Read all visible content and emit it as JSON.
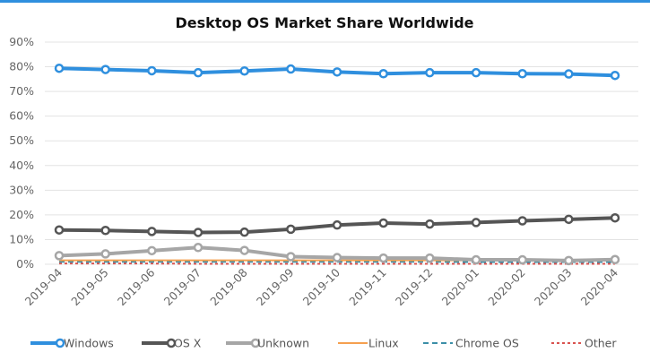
{
  "chart_data": {
    "type": "line",
    "title": "Desktop OS Market Share Worldwide",
    "categories": [
      "2019-04",
      "2019-05",
      "2019-06",
      "2019-07",
      "2019-08",
      "2019-09",
      "2019-10",
      "2019-11",
      "2019-12",
      "2020-01",
      "2020-02",
      "2020-03",
      "2020-04"
    ],
    "y_ticks": [
      "0%",
      "10%",
      "20%",
      "30%",
      "40%",
      "50%",
      "60%",
      "70%",
      "80%",
      "90%"
    ],
    "ylim": [
      0,
      90
    ],
    "grid": true,
    "legend_position": "bottom",
    "series": [
      {
        "name": "Windows",
        "color": "#2f8fde",
        "style": "solid-markers",
        "values": [
          79.4,
          78.9,
          78.4,
          77.6,
          78.3,
          79.1,
          77.9,
          77.2,
          77.6,
          77.6,
          77.2,
          77.1,
          76.5
        ]
      },
      {
        "name": "OS X",
        "color": "#555555",
        "style": "solid-markers",
        "values": [
          13.9,
          13.7,
          13.3,
          12.9,
          13.0,
          14.2,
          15.9,
          16.7,
          16.3,
          16.9,
          17.6,
          18.2,
          18.8
        ]
      },
      {
        "name": "Unknown",
        "color": "#a6a6a6",
        "style": "solid-markers",
        "values": [
          3.5,
          4.2,
          5.5,
          6.8,
          5.6,
          3.1,
          2.7,
          2.5,
          2.5,
          1.8,
          1.8,
          1.5,
          1.9
        ]
      },
      {
        "name": "Linux",
        "color": "#f5a04f",
        "style": "solid",
        "values": [
          1.6,
          1.6,
          1.6,
          1.6,
          1.6,
          1.6,
          1.6,
          1.6,
          1.6,
          1.6,
          1.7,
          1.5,
          1.6
        ]
      },
      {
        "name": "Chrome OS",
        "color": "#3b8fa8",
        "style": "dashed",
        "values": [
          1.0,
          1.0,
          1.0,
          1.0,
          1.0,
          1.0,
          1.0,
          1.0,
          1.0,
          0.9,
          0.9,
          0.9,
          0.9
        ]
      },
      {
        "name": "Other",
        "color": "#d9534f",
        "style": "dotted",
        "values": [
          0.3,
          0.3,
          0.3,
          0.2,
          0.2,
          0.2,
          0.2,
          0.2,
          0.2,
          0.2,
          0.2,
          0.2,
          0.2
        ]
      }
    ]
  }
}
